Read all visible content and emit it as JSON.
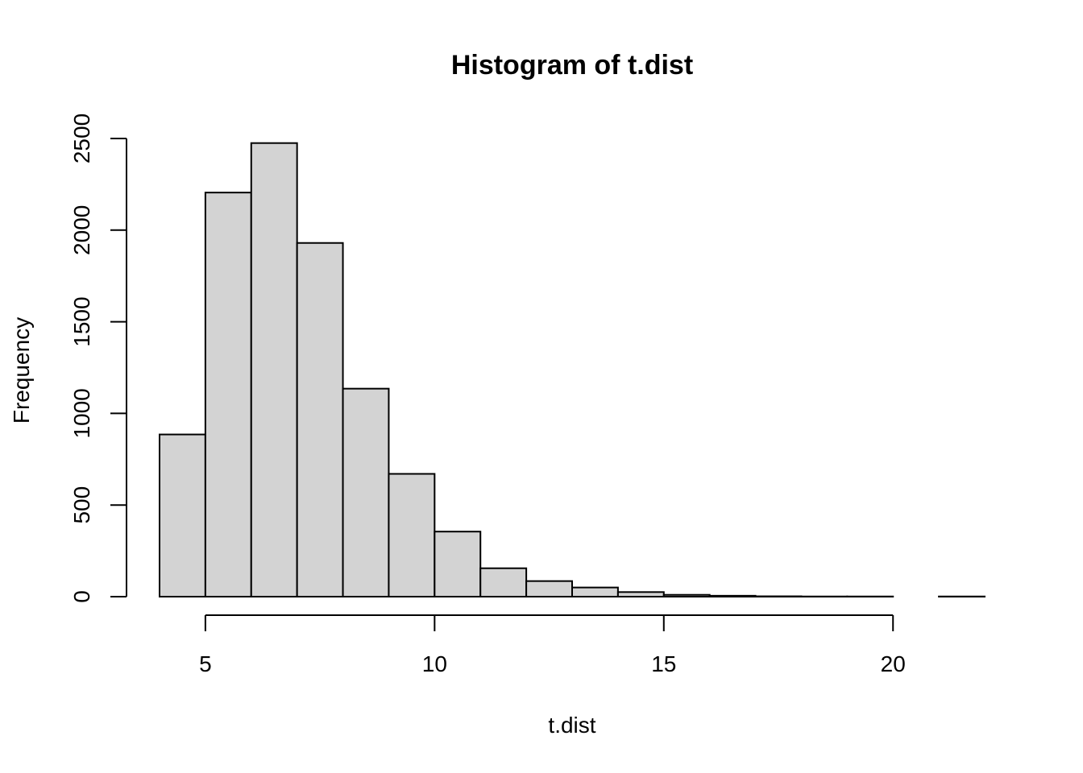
{
  "chart_data": {
    "type": "bar",
    "title": "Histogram of t.dist",
    "xlabel": "t.dist",
    "ylabel": "Frequency",
    "bins": [
      {
        "from": 4,
        "to": 5,
        "count": 885
      },
      {
        "from": 5,
        "to": 6,
        "count": 2205
      },
      {
        "from": 6,
        "to": 7,
        "count": 2475
      },
      {
        "from": 7,
        "to": 8,
        "count": 1930
      },
      {
        "from": 8,
        "to": 9,
        "count": 1135
      },
      {
        "from": 9,
        "to": 10,
        "count": 670
      },
      {
        "from": 10,
        "to": 11,
        "count": 355
      },
      {
        "from": 11,
        "to": 12,
        "count": 155
      },
      {
        "from": 12,
        "to": 13,
        "count": 85
      },
      {
        "from": 13,
        "to": 14,
        "count": 50
      },
      {
        "from": 14,
        "to": 15,
        "count": 25
      },
      {
        "from": 15,
        "to": 16,
        "count": 10
      },
      {
        "from": 16,
        "to": 17,
        "count": 5
      },
      {
        "from": 17,
        "to": 18,
        "count": 2
      },
      {
        "from": 18,
        "to": 19,
        "count": 1
      },
      {
        "from": 19,
        "to": 20,
        "count": 1
      },
      {
        "from": 20,
        "to": 21,
        "count": 0
      },
      {
        "from": 21,
        "to": 22,
        "count": 1
      }
    ],
    "xlim": [
      4,
      22
    ],
    "ylim": [
      0,
      2500
    ],
    "x_ticks": [
      5,
      10,
      15,
      20
    ],
    "x_tick_labels": [
      "5",
      "10",
      "15",
      "20"
    ],
    "y_ticks": [
      0,
      500,
      1000,
      1500,
      2000,
      2500
    ],
    "y_tick_labels": [
      "0",
      "500",
      "1000",
      "1500",
      "2000",
      "2500"
    ],
    "grid": false,
    "legend": "none",
    "colors": {
      "bar_fill": "#d3d3d3",
      "bar_stroke": "#000000",
      "background": "#ffffff"
    }
  }
}
